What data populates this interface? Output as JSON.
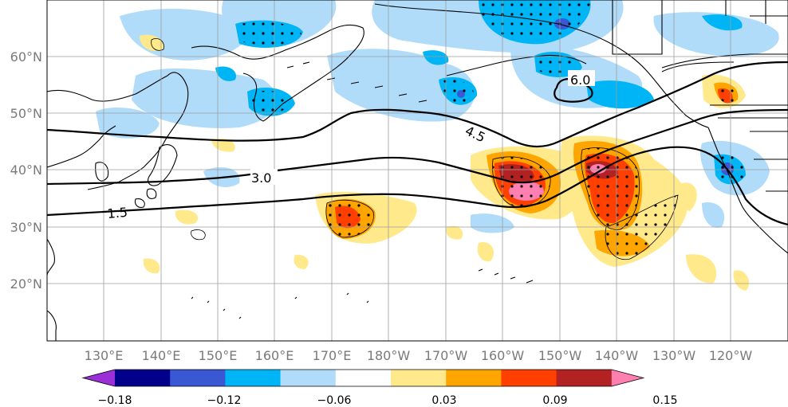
{
  "map": {
    "lat_ticks": [
      "60°N",
      "50°N",
      "40°N",
      "30°N",
      "20°N"
    ],
    "lon_ticks": [
      "130°E",
      "140°E",
      "150°E",
      "160°E",
      "170°E",
      "180°W",
      "170°W",
      "160°W",
      "150°W",
      "140°W",
      "130°W",
      "120°W"
    ],
    "contour_labels": [
      "6.0",
      "4.5",
      "3.0",
      "1.5"
    ]
  },
  "colorbar": {
    "colors": [
      "#9b30d9",
      "#00008b",
      "#3a57d4",
      "#00b5f5",
      "#b0dcfa",
      "#ffffff",
      "#ffe98a",
      "#ffa500",
      "#ff4000",
      "#b22222",
      "#ff7fb0"
    ],
    "tick_labels": [
      "−0.18",
      "−0.12",
      "−0.06",
      "0.03",
      "0.09",
      "0.15"
    ]
  }
}
